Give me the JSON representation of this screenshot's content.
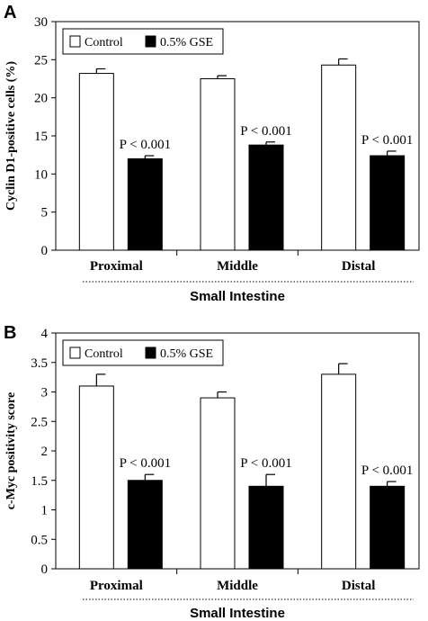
{
  "chart_data": [
    {
      "type": "bar",
      "panel": "A",
      "title": "",
      "categories": [
        "Proximal",
        "Middle",
        "Distal"
      ],
      "series": [
        {
          "name": "Control",
          "values": [
            23.2,
            22.5,
            24.3
          ],
          "errors": [
            0.6,
            0.4,
            0.8
          ],
          "color": "#ffffff"
        },
        {
          "name": "0.5% GSE",
          "values": [
            12.0,
            13.8,
            12.4
          ],
          "errors": [
            0.4,
            0.4,
            0.6
          ],
          "color": "#000000"
        }
      ],
      "annotations": [
        "P < 0.001",
        "P < 0.001",
        "P < 0.001"
      ],
      "ylabel": "Cyclin D1-positive cells (%)",
      "xlabel": "Small Intestine",
      "ylim": [
        0,
        30
      ],
      "yticks": [
        "0",
        "5",
        "10",
        "15",
        "20",
        "25",
        "30"
      ],
      "legend": "top-left",
      "grid": false
    },
    {
      "type": "bar",
      "panel": "B",
      "title": "",
      "categories": [
        "Proximal",
        "Middle",
        "Distal"
      ],
      "series": [
        {
          "name": "Control",
          "values": [
            3.1,
            2.9,
            3.3
          ],
          "errors": [
            0.2,
            0.1,
            0.18
          ],
          "color": "#ffffff"
        },
        {
          "name": "0.5% GSE",
          "values": [
            1.5,
            1.4,
            1.4
          ],
          "errors": [
            0.1,
            0.2,
            0.08
          ],
          "color": "#000000"
        }
      ],
      "annotations": [
        "P < 0.001",
        "P < 0.001",
        "P < 0.001"
      ],
      "ylabel": "c-Myc positivity score",
      "xlabel": "Small Intestine",
      "ylim": [
        0,
        4
      ],
      "yticks": [
        "0",
        "0.5",
        "1",
        "1.5",
        "2",
        "2.5",
        "3",
        "3.5",
        "4"
      ],
      "legend": "top-left",
      "grid": false
    }
  ]
}
